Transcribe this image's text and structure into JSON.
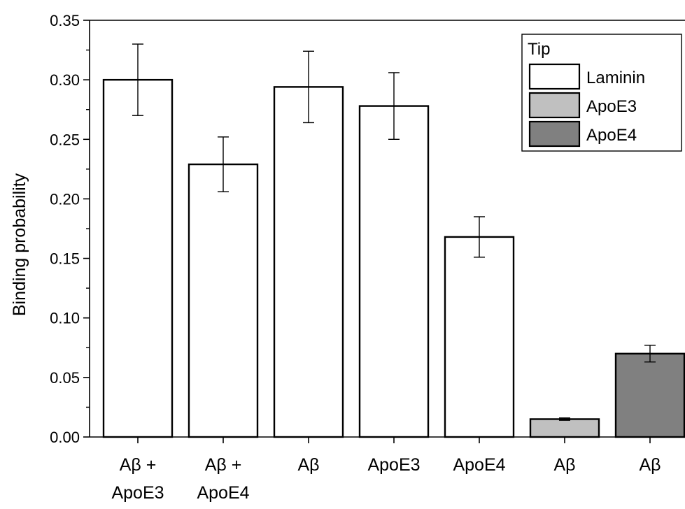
{
  "chart_data": {
    "type": "bar",
    "ylabel": "Binding probability",
    "ylim": [
      0,
      0.35
    ],
    "yticks": [
      "0.00",
      "0.05",
      "0.10",
      "0.15",
      "0.20",
      "0.25",
      "0.30",
      "0.35"
    ],
    "grid": false,
    "legend": {
      "title": "Tip",
      "placement": "top-right",
      "entries": [
        {
          "name": "Laminin",
          "color": "#ffffff"
        },
        {
          "name": "ApoE3",
          "color": "#c0c0c0"
        },
        {
          "name": "ApoE4",
          "color": "#808080"
        }
      ]
    },
    "bars": [
      {
        "label_lines": [
          "Aβ +",
          "ApoE3"
        ],
        "value": 0.3,
        "error": 0.03,
        "tip": "Laminin"
      },
      {
        "label_lines": [
          "Aβ +",
          "ApoE4"
        ],
        "value": 0.229,
        "error": 0.023,
        "tip": "Laminin"
      },
      {
        "label_lines": [
          "Aβ"
        ],
        "value": 0.294,
        "error": 0.03,
        "tip": "Laminin"
      },
      {
        "label_lines": [
          "ApoE3"
        ],
        "value": 0.278,
        "error": 0.028,
        "tip": "Laminin"
      },
      {
        "label_lines": [
          "ApoE4"
        ],
        "value": 0.168,
        "error": 0.017,
        "tip": "Laminin"
      },
      {
        "label_lines": [
          "Aβ"
        ],
        "value": 0.015,
        "error": 0.001,
        "tip": "ApoE3"
      },
      {
        "label_lines": [
          "Aβ"
        ],
        "value": 0.07,
        "error": 0.007,
        "tip": "ApoE4"
      }
    ]
  }
}
